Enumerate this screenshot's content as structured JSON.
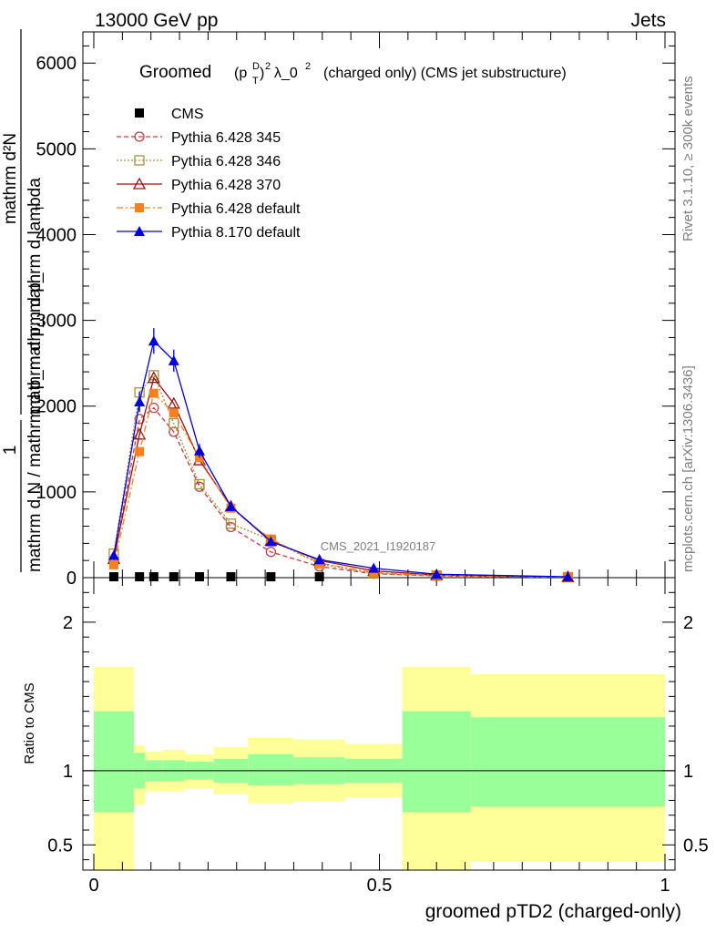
{
  "header": {
    "left": "13000 GeV pp",
    "right": "Jets"
  },
  "side_labels": {
    "rivet": "Rivet 3.1.10, ≥ 300k events",
    "mcplots": "mcplots.cern.ch [arXiv:1306.3436]"
  },
  "watermark": "CMS_2021_I1920187",
  "colors": {
    "cms": "#000000",
    "p345": "#bf4040",
    "p346": "#a89040",
    "p370": "#a01010",
    "p6def": "#f58020",
    "p8def": "#0000dd",
    "band_outer": "#ffff99",
    "band_inner": "#99ff99"
  },
  "chart_data": [
    {
      "type": "line",
      "title": "Groomed (p_T^D)^2 λ_0^2 (charged only) (CMS jet substructure)",
      "title_parts": {
        "prefix": "Groomed",
        "p": "(p",
        "D": "D",
        "T": "T",
        "sq": ")",
        "two": "2",
        "lam": "λ_0",
        "two2": "2",
        "rest": "(charged only) (CMS jet substructure)"
      },
      "ylabel": {
        "numerator": "1",
        "denominator": "mathrm d N / mathrm d p_mathrm d p_",
        "sub_T": "T",
        "numerator2": "mathrm d²N",
        "denominator2": "mathrm d p_ mathrm d lambda",
        "sup_2": "2"
      },
      "xlim": [
        0,
        1
      ],
      "ylim": [
        0,
        6300
      ],
      "yticks": [
        {
          "value": 0,
          "label": "0"
        },
        {
          "value": 1000,
          "label": "1000"
        },
        {
          "value": 2000,
          "label": "2000"
        },
        {
          "value": 3000,
          "label": "3000"
        },
        {
          "value": 4000,
          "label": "4000"
        },
        {
          "value": 5000,
          "label": "5000"
        },
        {
          "value": 6000,
          "label": "6000"
        }
      ],
      "legend_position": "top-left",
      "series": [
        {
          "key": "cms",
          "name": "CMS",
          "marker": "square-filled",
          "line": "none",
          "x": [
            0.035,
            0.08,
            0.105,
            0.14,
            0.185,
            0.24,
            0.31,
            0.395
          ],
          "y": [
            0,
            0,
            0,
            0,
            0,
            0,
            0,
            0
          ]
        },
        {
          "key": "p345",
          "name": "Pythia 6.428 345",
          "marker": "circle-open",
          "line": "dashed",
          "x": [
            0.035,
            0.08,
            0.105,
            0.14,
            0.185,
            0.24,
            0.31,
            0.395,
            0.49,
            0.6,
            0.83
          ],
          "y": [
            200,
            1850,
            1980,
            1700,
            1060,
            590,
            300,
            130,
            45,
            20,
            5
          ]
        },
        {
          "key": "p346",
          "name": "Pythia 6.428 346",
          "marker": "square-open",
          "line": "dotted",
          "x": [
            0.035,
            0.08,
            0.105,
            0.14,
            0.185,
            0.24,
            0.31,
            0.395,
            0.49,
            0.6,
            0.83
          ],
          "y": [
            280,
            2160,
            2360,
            1800,
            1090,
            630,
            440,
            160,
            50,
            25,
            6
          ]
        },
        {
          "key": "p370",
          "name": "Pythia 6.428 370",
          "marker": "triangle-open",
          "line": "solid",
          "x": [
            0.035,
            0.08,
            0.105,
            0.14,
            0.185,
            0.24,
            0.31,
            0.395,
            0.49,
            0.6,
            0.83
          ],
          "y": [
            220,
            1670,
            2330,
            2030,
            1370,
            830,
            430,
            200,
            80,
            30,
            8
          ]
        },
        {
          "key": "p6def",
          "name": "Pythia 6.428 default",
          "marker": "square-filled",
          "line": "dashdot",
          "x": [
            0.035,
            0.08,
            0.105,
            0.14,
            0.185,
            0.24,
            0.31,
            0.395,
            0.49,
            0.6,
            0.83
          ],
          "y": [
            150,
            1470,
            2150,
            1920,
            1400,
            810,
            450,
            170,
            60,
            25,
            6
          ]
        },
        {
          "key": "p8def",
          "name": "Pythia 8.170 default",
          "marker": "triangle-filled",
          "line": "solid",
          "x": [
            0.035,
            0.08,
            0.105,
            0.14,
            0.185,
            0.24,
            0.31,
            0.395,
            0.49,
            0.6,
            0.83
          ],
          "y": [
            260,
            2050,
            2760,
            2530,
            1480,
            830,
            420,
            210,
            110,
            40,
            10
          ],
          "yerr": [
            30,
            120,
            150,
            130,
            80,
            50,
            30,
            15,
            10,
            5,
            2
          ]
        }
      ]
    },
    {
      "type": "area",
      "ylabel": "Ratio to CMS",
      "xlabel": "groomed pTD2 (charged-only)",
      "xlim": [
        0,
        1
      ],
      "ylim": [
        0.33,
        2.3
      ],
      "yticks": [
        {
          "value": 0.5,
          "label": "0.5"
        },
        {
          "value": 1,
          "label": "1"
        },
        {
          "value": 2,
          "label": "2"
        }
      ],
      "xticks": [
        {
          "value": 0,
          "label": "0"
        },
        {
          "value": 0.5,
          "label": "0.5"
        },
        {
          "value": 1,
          "label": "1"
        }
      ],
      "bins": [
        {
          "lo": 0.0,
          "hi": 0.07,
          "outer": [
            0.33,
            1.7
          ],
          "inner": [
            0.72,
            1.4
          ]
        },
        {
          "lo": 0.07,
          "hi": 0.09,
          "outer": [
            0.77,
            1.17
          ],
          "inner": [
            0.88,
            1.12
          ]
        },
        {
          "lo": 0.09,
          "hi": 0.12,
          "outer": [
            0.86,
            1.13
          ],
          "inner": [
            0.93,
            1.07
          ]
        },
        {
          "lo": 0.12,
          "hi": 0.16,
          "outer": [
            0.86,
            1.14
          ],
          "inner": [
            0.93,
            1.07
          ]
        },
        {
          "lo": 0.16,
          "hi": 0.21,
          "outer": [
            0.88,
            1.11
          ],
          "inner": [
            0.94,
            1.06
          ]
        },
        {
          "lo": 0.21,
          "hi": 0.27,
          "outer": [
            0.84,
            1.16
          ],
          "inner": [
            0.92,
            1.08
          ]
        },
        {
          "lo": 0.27,
          "hi": 0.35,
          "outer": [
            0.78,
            1.22
          ],
          "inner": [
            0.9,
            1.11
          ]
        },
        {
          "lo": 0.35,
          "hi": 0.44,
          "outer": [
            0.79,
            1.21
          ],
          "inner": [
            0.91,
            1.09
          ]
        },
        {
          "lo": 0.44,
          "hi": 0.54,
          "outer": [
            0.82,
            1.18
          ],
          "inner": [
            0.92,
            1.08
          ]
        },
        {
          "lo": 0.54,
          "hi": 0.66,
          "outer": [
            0.33,
            1.7
          ],
          "inner": [
            0.72,
            1.4
          ]
        },
        {
          "lo": 0.66,
          "hi": 1.0,
          "outer": [
            0.39,
            1.65
          ],
          "inner": [
            0.76,
            1.36
          ]
        }
      ]
    }
  ]
}
